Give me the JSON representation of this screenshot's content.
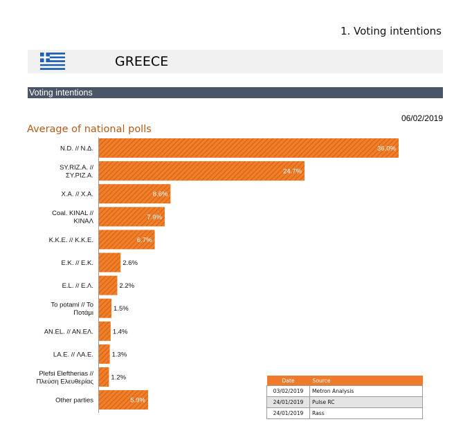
{
  "page_heading": "1. Voting intentions",
  "country": "GREECE",
  "section_title": "Voting intentions",
  "report_date": "06/02/2019",
  "colors": {
    "bar_fill": "#f07d28",
    "bar_hatch": "#c85a12",
    "title_accent": "#b55a17",
    "section_band": "#4a5668",
    "flag_blue": "#1f5fb4"
  },
  "icons": {
    "flag": "greek-flag-icon"
  },
  "chart_data": {
    "type": "bar",
    "orientation": "horizontal",
    "title": "Average of national polls",
    "categories": [
      [
        "N.D. // N.Δ."
      ],
      [
        "SY.RIZ.A. //",
        "ΣΥ.ΡΙΖ.Α."
      ],
      [
        "X.A. // X.A."
      ],
      [
        "Coal. KINAL //",
        "ΚΙΝΑΛ"
      ],
      [
        "K.K.E. // K.K.E."
      ],
      [
        "E.K. // E.K."
      ],
      [
        "E.L. // Ε.Λ."
      ],
      [
        "To potami // To",
        "Ποτάμι"
      ],
      [
        "AN.EL. // AN.EΛ."
      ],
      [
        "LA.E. // ΛΑ.Ε."
      ],
      [
        "Plefsi Eleftherias //",
        "Πλεύση Ελευθερίας"
      ],
      [
        "Other parties"
      ]
    ],
    "values": [
      36.0,
      24.7,
      8.6,
      7.9,
      6.7,
      2.6,
      2.2,
      1.5,
      1.4,
      1.3,
      1.2,
      5.9
    ],
    "data_labels": [
      "36.0%",
      "24.7%",
      "8.6%",
      "7.9%",
      "6.7%",
      "2.6%",
      "2.2%",
      "1.5%",
      "1.4%",
      "1.3%",
      "1.2%",
      "5.9%"
    ],
    "xlim": [
      0,
      37
    ],
    "grid": false,
    "legend": "none"
  },
  "sources_table": {
    "headers": [
      "Date",
      "Source"
    ],
    "rows": [
      [
        "03/02/2019",
        "Metron Analysis"
      ],
      [
        "24/01/2019",
        "Pulse RC"
      ],
      [
        "24/01/2019",
        "Rass"
      ]
    ]
  }
}
